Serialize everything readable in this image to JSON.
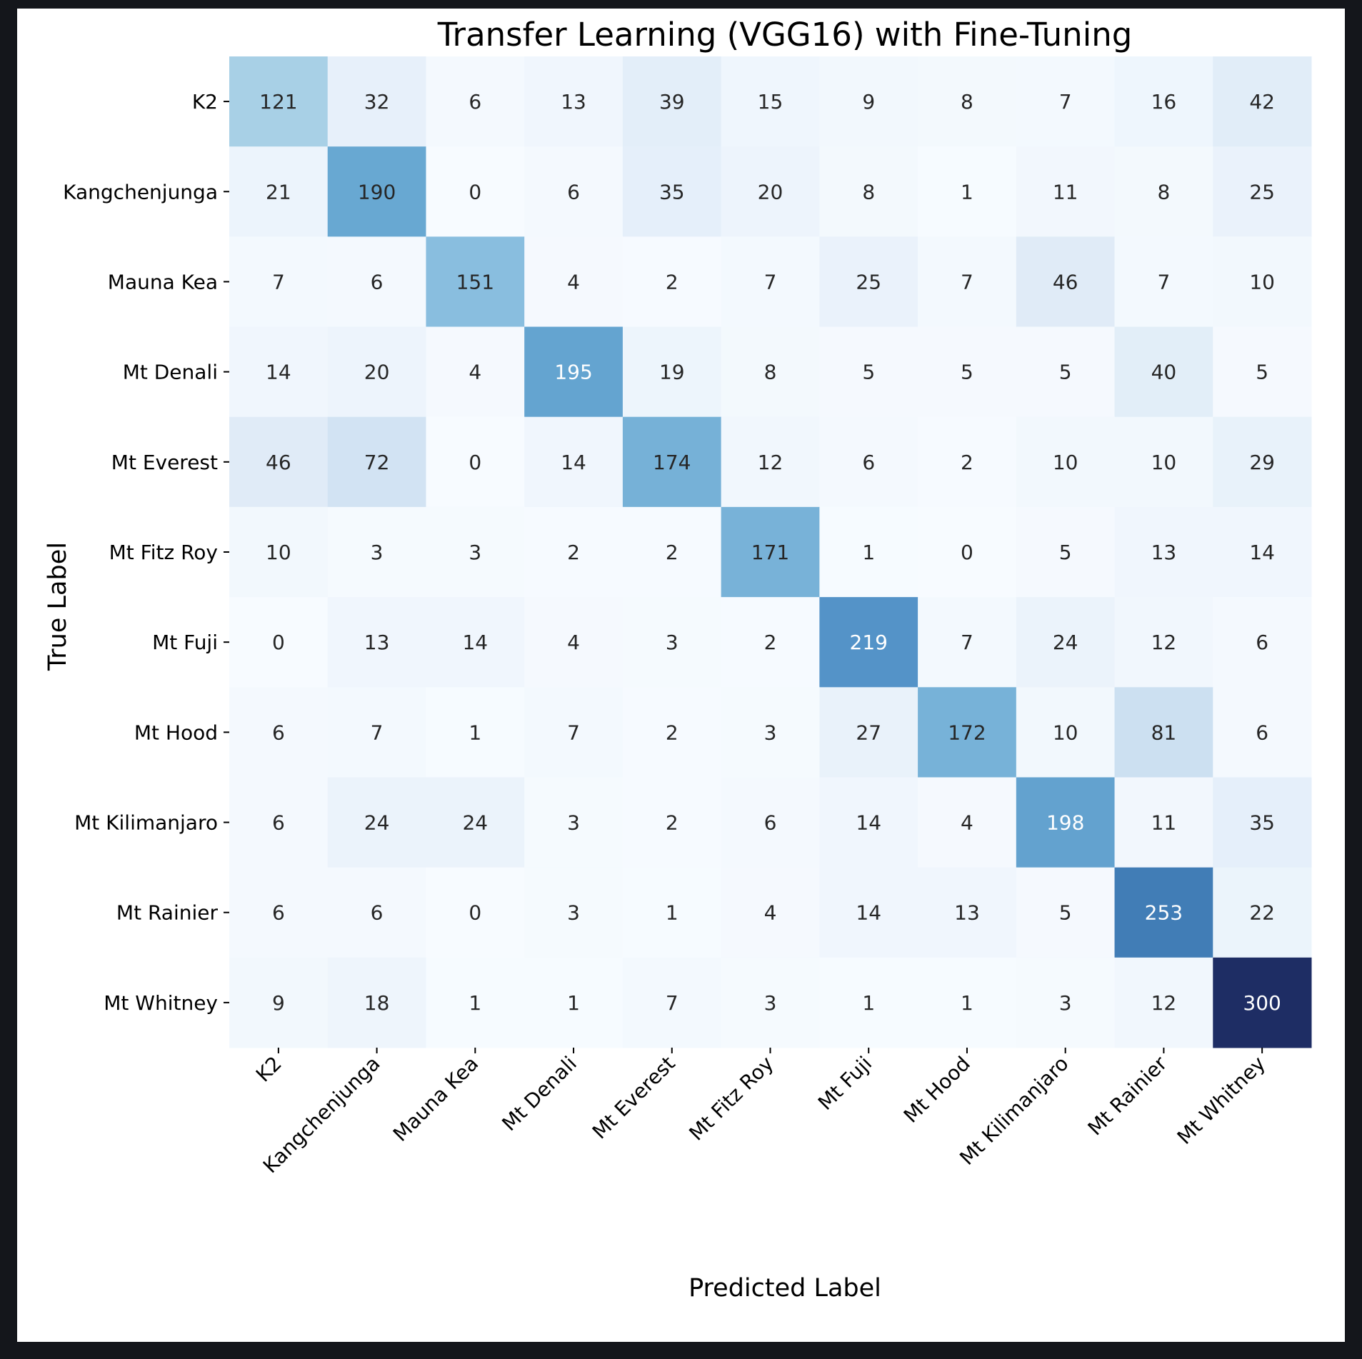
{
  "chart_data": {
    "type": "heatmap",
    "title": "Transfer Learning (VGG16) with Fine-Tuning",
    "xlabel": "Predicted Label",
    "ylabel": "True Label",
    "x_categories": [
      "K2",
      "Kangchenjunga",
      "Mauna Kea",
      "Mt Denali",
      "Mt Everest",
      "Mt Fitz Roy",
      "Mt Fuji",
      "Mt Hood",
      "Mt Kilimanjaro",
      "Mt Rainier",
      "Mt Whitney"
    ],
    "y_categories": [
      "K2",
      "Kangchenjunga",
      "Mauna Kea",
      "Mt Denali",
      "Mt Everest",
      "Mt Fitz Roy",
      "Mt Fuji",
      "Mt Hood",
      "Mt Kilimanjaro",
      "Mt Rainier",
      "Mt Whitney"
    ],
    "values": [
      [
        121,
        32,
        6,
        13,
        39,
        15,
        9,
        8,
        7,
        16,
        42
      ],
      [
        21,
        190,
        0,
        6,
        35,
        20,
        8,
        1,
        11,
        8,
        25
      ],
      [
        7,
        6,
        151,
        4,
        2,
        7,
        25,
        7,
        46,
        7,
        10
      ],
      [
        14,
        20,
        4,
        195,
        19,
        8,
        5,
        5,
        5,
        40,
        5
      ],
      [
        46,
        72,
        0,
        14,
        174,
        12,
        6,
        2,
        10,
        10,
        29
      ],
      [
        10,
        3,
        3,
        2,
        2,
        171,
        1,
        0,
        5,
        13,
        14
      ],
      [
        0,
        13,
        14,
        4,
        3,
        2,
        219,
        7,
        24,
        12,
        6
      ],
      [
        6,
        7,
        1,
        7,
        2,
        3,
        27,
        172,
        10,
        81,
        6
      ],
      [
        6,
        24,
        24,
        3,
        2,
        6,
        14,
        4,
        198,
        11,
        35
      ],
      [
        6,
        6,
        0,
        3,
        1,
        4,
        14,
        13,
        5,
        253,
        22
      ],
      [
        9,
        18,
        1,
        1,
        7,
        3,
        1,
        1,
        3,
        12,
        300
      ]
    ],
    "colormap": "Blues",
    "value_range": [
      0,
      300
    ],
    "colorbar": false,
    "annotations": true
  },
  "colors": {
    "page_background": "#14161b",
    "figure_background": "#ffffff",
    "text": "#000000",
    "cell_text_light": "#ffffff",
    "cell_text_dark": "#262626"
  }
}
